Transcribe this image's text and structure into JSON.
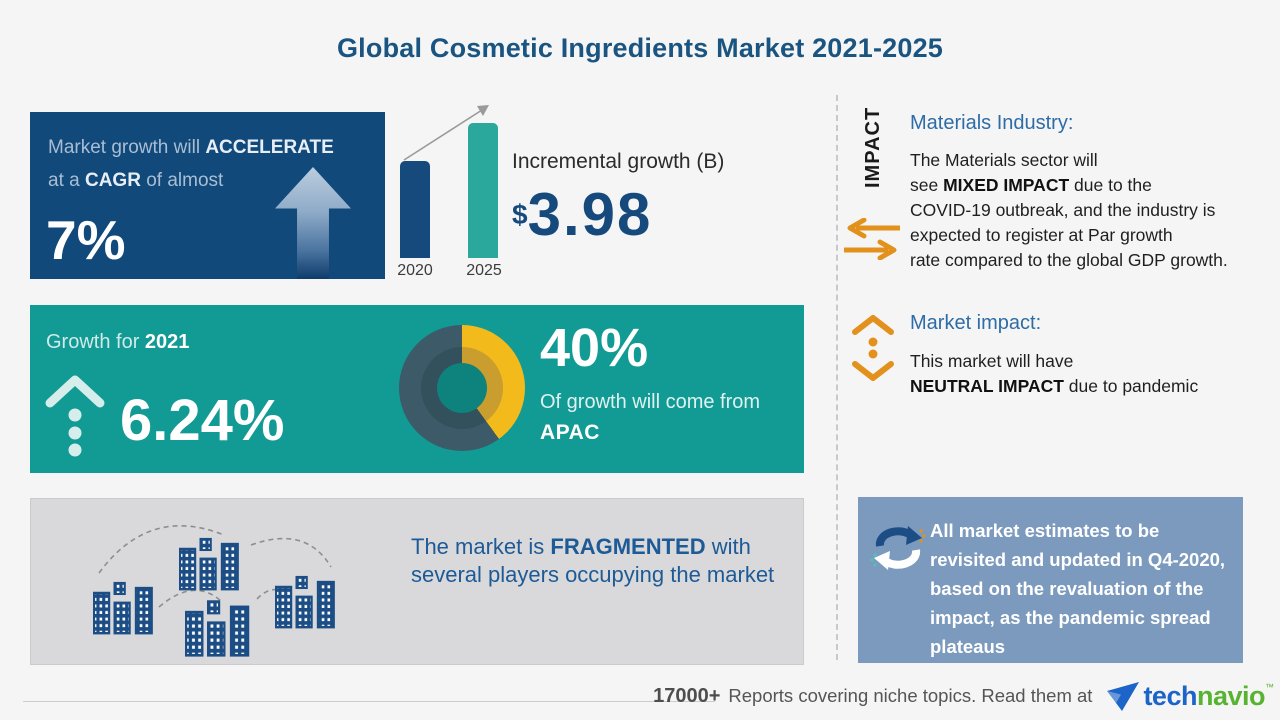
{
  "title": "Global Cosmetic Ingredients Market 2021-2025",
  "accelerate_card": {
    "line1_pre": "Market growth will ",
    "line1_bold": "ACCELERATE",
    "line2_pre": "at a ",
    "line2_bold": "CAGR",
    "line2_post": " of almost",
    "value": "7%"
  },
  "incremental_growth": {
    "label": "Incremental growth (B)",
    "currency": "$",
    "value": "3.98"
  },
  "chart_data": [
    {
      "type": "bar",
      "title": "Incremental growth (B)",
      "categories": [
        "2020",
        "2025"
      ],
      "values_relative": [
        0.72,
        1.0
      ],
      "annotation": "$3.98",
      "bar_colors": [
        "#164a7c",
        "#2aa89c"
      ],
      "note": "No numeric axis shown; incremental growth between 2020 and 2025 bars is $3.98 B"
    },
    {
      "type": "donut",
      "slices": [
        {
          "label": "APAC",
          "value": 40,
          "color": "#f3ba1c",
          "inner_color": "#c99d2e"
        },
        {
          "label": "Rest of market",
          "value": 60,
          "color": "#3d5a68",
          "inner_color": "#33505d"
        }
      ],
      "hole_color": "#0e837d",
      "title": "40% Of growth will come from APAC",
      "legend_position": "none"
    }
  ],
  "growth_card": {
    "label_pre": "Growth for ",
    "label_year": "2021",
    "value": "6.24%",
    "donut_pct": "40%",
    "donut_line": "Of growth will come from",
    "donut_region": "APAC"
  },
  "fragmented_card": {
    "pre": "The market is ",
    "bold": "FRAGMENTED",
    "rest": " with several players occupying the market"
  },
  "impact_panel": {
    "vertical_label": "IMPACT",
    "materials_heading": "Materials Industry:",
    "materials_l1": "The Materials sector will",
    "materials_l2a": "see ",
    "materials_l2b": "MIXED IMPACT",
    "materials_l2c": " due to the",
    "materials_l3": "COVID-19 outbreak, and the industry is",
    "materials_l4": "expected to register at Par growth",
    "materials_l5": "rate compared to the global GDP growth.",
    "market_heading": "Market impact:",
    "market_l1": "This market will have",
    "market_l2a": "NEUTRAL IMPACT",
    "market_l2b": " due to pandemic"
  },
  "estimates_card": {
    "text": "All market estimates to be revisited and updated in Q4-2020, based on the revaluation of the impact, as the pandemic spread plateaus"
  },
  "footer": {
    "count": "17000+",
    "text": "Reports covering niche topics. Read them at",
    "logo_tech": "tech",
    "logo_navio": "navio",
    "trademark": "™"
  },
  "colors": {
    "navy": "#164a7c",
    "card_navy": "#11497b",
    "teal": "#129a94",
    "bar_teal": "#2aa89c",
    "donut_yellow": "#f3ba1c",
    "donut_slate": "#3d5a68",
    "gray_card": "#d9d9db",
    "steel_blue_card": "#7b9abd",
    "orange": "#e2921c",
    "heading_blue": "#2e6ca6",
    "logo_blue": "#1d64c8",
    "logo_green": "#57b330"
  }
}
